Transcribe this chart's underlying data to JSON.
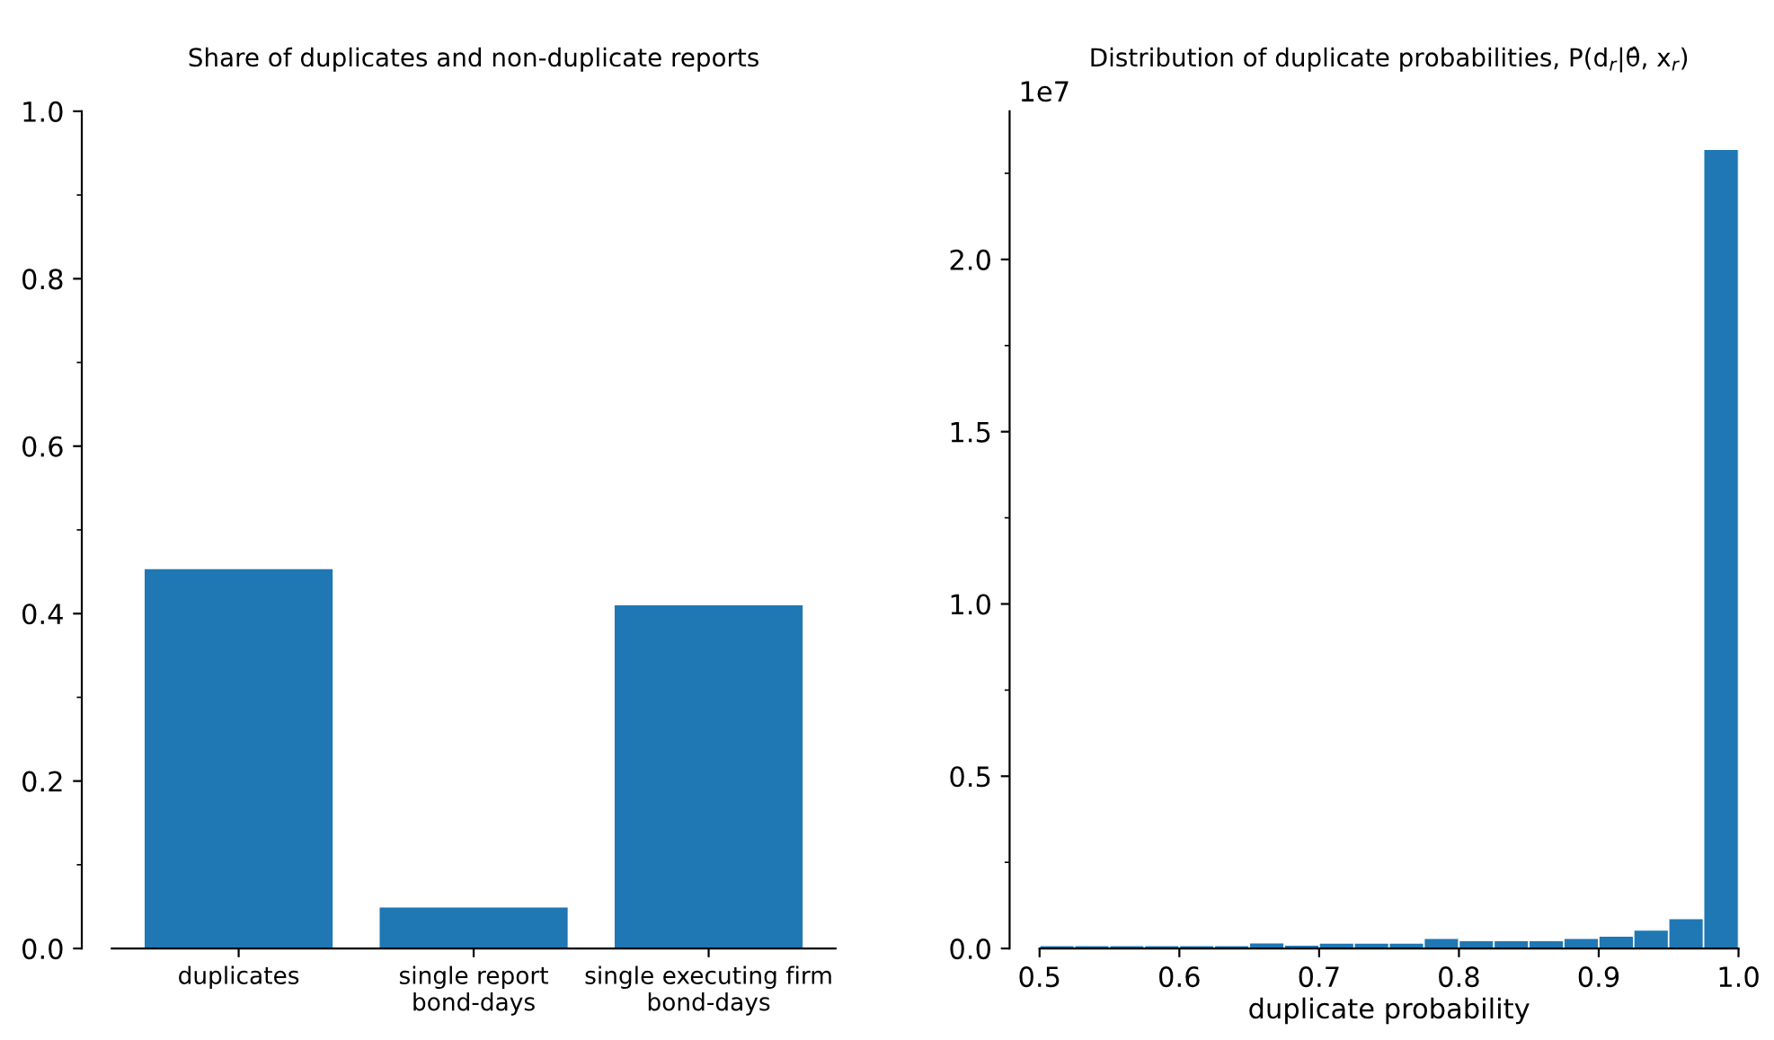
{
  "chart_data": [
    {
      "type": "bar",
      "title": "Share of duplicates and non-duplicate reports",
      "categories": [
        "duplicates",
        "single report\nbond-days",
        "single executing firm\nbond-days"
      ],
      "values": [
        0.453,
        0.049,
        0.41
      ],
      "color": "#1f77b4",
      "ylim": [
        0,
        1
      ],
      "yticks": [
        {
          "value": 0,
          "label": "0.0"
        },
        0.2,
        0.4,
        0.6,
        0.8,
        {
          "value": 1,
          "label": "1.0"
        }
      ],
      "grid": false,
      "legend": false
    },
    {
      "type": "histogram",
      "title": "Distribution of duplicate probabilities, P(d$_{r}$|θ̂, x$_{r}$)",
      "xlabel": "duplicate probability",
      "bins": [
        0.5,
        0.525,
        0.55,
        0.575,
        0.6,
        0.625,
        0.65,
        0.675,
        0.7,
        0.725,
        0.75,
        0.775,
        0.8,
        0.825,
        0.85,
        0.875,
        0.9,
        0.925,
        0.95,
        0.975,
        1.0
      ],
      "values": [
        0.009,
        0.009,
        0.009,
        0.009,
        0.009,
        0.009,
        0.017,
        0.01,
        0.016,
        0.016,
        0.016,
        0.03,
        0.023,
        0.023,
        0.023,
        0.03,
        0.036,
        0.054,
        0.087,
        2.32
      ],
      "color": "#1f77b4",
      "xlim": [
        0.5,
        1.0
      ],
      "xticks": [
        0.5,
        0.6,
        0.7,
        0.8,
        0.9,
        {
          "value": 1,
          "label": "1.0"
        }
      ],
      "ylim": [
        0,
        2.43
      ],
      "yticks": [
        {
          "value": 0,
          "label": "0.0"
        },
        0.5,
        {
          "value": 1,
          "label": "1.0"
        },
        1.5,
        {
          "value": 2,
          "label": "2.0"
        }
      ],
      "annotations": [
        "1e7"
      ],
      "grid": false,
      "legend": false
    }
  ]
}
